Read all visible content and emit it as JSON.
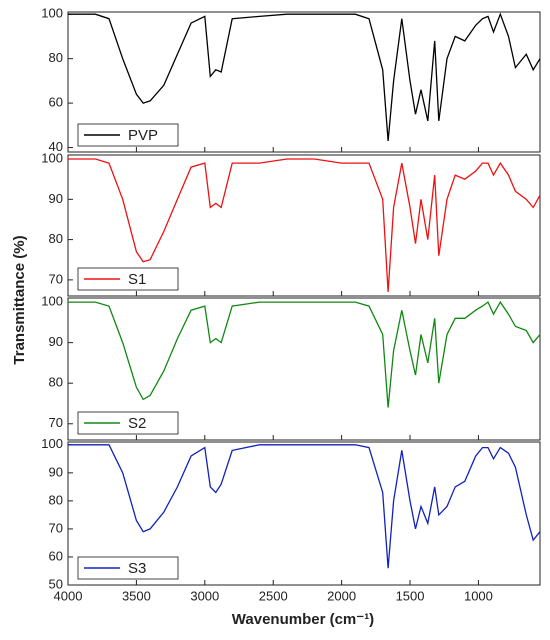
{
  "chart_data": {
    "type": "line",
    "xlabel": "Wavenumber (cm⁻¹)",
    "ylabel": "Transmittance (%)",
    "xlim": [
      4000,
      550
    ],
    "xticks": [
      4000,
      3500,
      3000,
      2500,
      2000,
      1500,
      1000
    ],
    "x": [
      4000,
      3800,
      3700,
      3600,
      3500,
      3450,
      3400,
      3300,
      3200,
      3100,
      3000,
      2960,
      2920,
      2880,
      2800,
      2600,
      2400,
      2200,
      2000,
      1900,
      1800,
      1700,
      1660,
      1620,
      1560,
      1500,
      1460,
      1420,
      1370,
      1320,
      1290,
      1230,
      1170,
      1100,
      1020,
      970,
      930,
      890,
      840,
      780,
      730,
      650,
      600,
      550
    ],
    "panels": [
      {
        "name": "PVP",
        "color": "#000000",
        "ylim": [
          38,
          101
        ],
        "yticks": [
          40,
          60,
          80,
          100
        ],
        "values": [
          100,
          100,
          98,
          80,
          64,
          60,
          61,
          68,
          82,
          96,
          99,
          72,
          75,
          74,
          98,
          99,
          100,
          100,
          100,
          100,
          98,
          75,
          43,
          70,
          98,
          70,
          55,
          66,
          52,
          88,
          52,
          80,
          90,
          88,
          95,
          98,
          99,
          92,
          100,
          90,
          76,
          82,
          75,
          80
        ]
      },
      {
        "name": "S1",
        "color": "#ee1111",
        "ylim": [
          66,
          101
        ],
        "yticks": [
          70,
          80,
          90,
          100
        ],
        "values": [
          100,
          100,
          99,
          90,
          77,
          74.5,
          75,
          82,
          90,
          98,
          99,
          88,
          89,
          88,
          99,
          99,
          100,
          100,
          99,
          99,
          99,
          90,
          67,
          88,
          99,
          88,
          79,
          90,
          80,
          96,
          76,
          90,
          96,
          95,
          97,
          99,
          99,
          96,
          99,
          96,
          92,
          90,
          88,
          91
        ]
      },
      {
        "name": "S2",
        "color": "#118811",
        "ylim": [
          66,
          101
        ],
        "yticks": [
          70,
          80,
          90,
          100
        ],
        "values": [
          100,
          100,
          99,
          90,
          79,
          76,
          77,
          83,
          91,
          98,
          99,
          90,
          91,
          90,
          99,
          100,
          100,
          100,
          100,
          100,
          99,
          92,
          74,
          88,
          98,
          88,
          82,
          92,
          85,
          96,
          80,
          92,
          96,
          96,
          98,
          99,
          100,
          97,
          100,
          97,
          94,
          93,
          90,
          92
        ]
      },
      {
        "name": "S3",
        "color": "#1122bb",
        "ylim": [
          50,
          101
        ],
        "yticks": [
          50,
          60,
          70,
          80,
          90,
          100
        ],
        "values": [
          100,
          100,
          100,
          90,
          73,
          69,
          70,
          76,
          85,
          96,
          99,
          85,
          83,
          86,
          98,
          100,
          100,
          100,
          100,
          100,
          99,
          83,
          56,
          80,
          98,
          80,
          70,
          78,
          72,
          85,
          75,
          78,
          85,
          87,
          96,
          99,
          99,
          95,
          99,
          97,
          92,
          75,
          66,
          69
        ]
      }
    ]
  }
}
